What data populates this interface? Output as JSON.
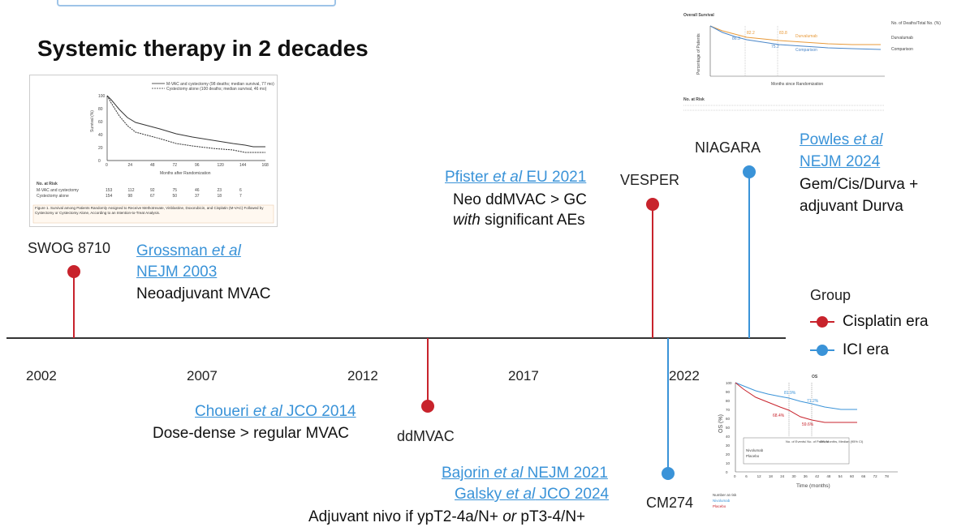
{
  "title": "Systemic therapy in 2 decades",
  "years": [
    "2002",
    "2007",
    "2012",
    "2017",
    "2022"
  ],
  "legend": {
    "title": "Group",
    "items": [
      {
        "label": "Cisplatin era",
        "color": "#c8232c"
      },
      {
        "label": "ICI era",
        "color": "#3a93d8"
      }
    ]
  },
  "events": {
    "swog": {
      "trial": "SWOG 8710",
      "ref_a": "Grossman ",
      "ref_italic": "et al",
      "ref_b": "NEJM 2003",
      "desc": "Neoadjuvant MVAC"
    },
    "ddmvac": {
      "trial": "ddMVAC",
      "ref_a": "Choueri ",
      "ref_italic": "et al",
      "ref_b": " JCO 2014",
      "desc": "Dose-dense > regular MVAC"
    },
    "vesper": {
      "trial": "VESPER",
      "ref_a": "Pfister ",
      "ref_italic": "et al",
      "ref_b": " EU 2021",
      "desc1": "Neo ddMVAC > GC",
      "desc2_italic": "with",
      "desc2": " significant AEs"
    },
    "niagara": {
      "trial": "NIAGARA",
      "ref_a": "Powles ",
      "ref_italic": "et al",
      "ref_b": "NEJM 2024",
      "desc1": "Gem/Cis/Durva +",
      "desc2": "adjuvant Durva"
    },
    "cm274": {
      "trial": "CM274",
      "ref1_a": "Bajorin ",
      "ref1_italic": "et al",
      "ref1_b": " NEJM 2021",
      "ref2_a": "Galsky ",
      "ref2_italic": "et al",
      "ref2_b": " JCO 2024",
      "desc_a": "Adjuvant nivo if ypT2-4a/N+ ",
      "desc_italic": "or",
      "desc_b": " pT3-4/N+"
    }
  },
  "figures": {
    "swog_km": {
      "legend1": "M-VAC and cystectomy (98 deaths; median survival, 77 mo)",
      "legend2": "Cystectomy alone (100 deaths; median survival, 46 mo)",
      "ylabel": "Survival (%)",
      "xlabel": "Months after Randomization",
      "yticks": [
        "100",
        "80",
        "60",
        "40",
        "20",
        "0"
      ],
      "xticks": [
        "0",
        "24",
        "48",
        "72",
        "96",
        "120",
        "144",
        "168"
      ],
      "risk_title": "No. at Risk",
      "risk_rows": [
        {
          "label": "M-VAC and cystectomy",
          "values": [
            "153",
            "112",
            "92",
            "75",
            "46",
            "23",
            "6"
          ]
        },
        {
          "label": "Cystectomy alone",
          "values": [
            "154",
            "98",
            "67",
            "50",
            "37",
            "18",
            "7"
          ]
        }
      ],
      "caption": "Figure 1. Survival among Patients Randomly Assigned to Receive Methotrexate, Vinblastine, Doxorubicin, and Cisplatin (M-VAC) Followed by Cystectomy or Cystectomy Alone, According to an Intention-to-Treat Analysis."
    },
    "niagara_km": {
      "title": "Overall Survival",
      "ylabel": "Percentage of Patients",
      "xlabel": "Months since Randomization",
      "arm1": "Durvalumab",
      "arm2": "Comparison",
      "pct1": "82.2",
      "pct2": "75.2",
      "pct3": "86.3",
      "pct4": "83.8",
      "side_header": "No. of Deaths/Total No. (%)",
      "side_row1": "Durvalumab",
      "side_row2": "Comparison",
      "risk_title": "No. at Risk"
    },
    "cm274_km": {
      "title": "OS",
      "ylabel": "OS (%)",
      "xlabel": "Time (months)",
      "yticks": [
        "100",
        "90",
        "80",
        "70",
        "60",
        "50",
        "40",
        "30",
        "20",
        "10",
        "0"
      ],
      "xticks": [
        "0",
        "6",
        "12",
        "18",
        "24",
        "30",
        "36",
        "42",
        "48",
        "54",
        "60",
        "66",
        "72",
        "78"
      ],
      "pct1": "81.9%",
      "pct2": "71.2%",
      "pct3": "68.4%",
      "pct4": "59.6%",
      "table_header1": "No. of Events/ No. of Patients",
      "table_header2": "OS, Months, Median (95% CI)",
      "row1": "Nivolumab",
      "row2": "Placebo",
      "risk_title": "Number at risk",
      "risk1": "Nivolumab",
      "risk2": "Placebo"
    }
  }
}
